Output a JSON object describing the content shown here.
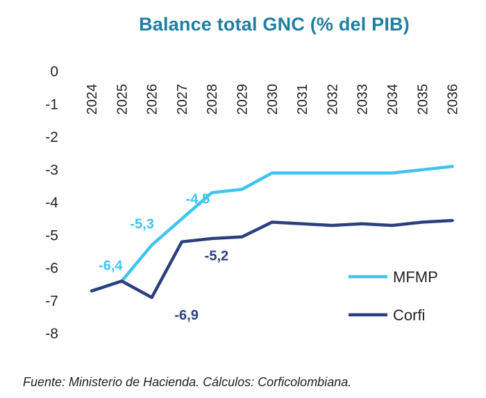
{
  "chart_data": {
    "type": "line",
    "title": "Balance total GNC (% del PIB)",
    "xlabel": "",
    "ylabel": "",
    "categories": [
      "2024",
      "2025",
      "2026",
      "2027",
      "2028",
      "2029",
      "2030",
      "2031",
      "2032",
      "2033",
      "2034",
      "2035",
      "2036"
    ],
    "ylim": [
      -8,
      0
    ],
    "yticks": [
      0,
      -1,
      -2,
      -3,
      -4,
      -5,
      -6,
      -7,
      -8
    ],
    "grid": false,
    "legend_position": "bottom-right",
    "series": [
      {
        "name": "MFMP",
        "color": "#3fc4f0",
        "values": [
          -6.7,
          -6.4,
          -5.3,
          -4.5,
          -3.7,
          -3.6,
          -3.1,
          -3.1,
          -3.1,
          -3.1,
          -3.1,
          -3.0,
          -2.9
        ],
        "labels": [
          {
            "index": 1,
            "text": "-6,4"
          },
          {
            "index": 2,
            "text": "-5,3"
          },
          {
            "index": 3,
            "text": "-4,5"
          }
        ]
      },
      {
        "name": "Corfi",
        "color": "#2b3f7d",
        "values": [
          -6.7,
          -6.4,
          -6.9,
          -5.2,
          -5.1,
          -5.05,
          -4.6,
          -4.65,
          -4.7,
          -4.65,
          -4.7,
          -4.6,
          -4.55
        ],
        "labels": [
          {
            "index": 2,
            "text": "-6,9"
          },
          {
            "index": 3,
            "text": "-5,2"
          }
        ]
      }
    ]
  },
  "source_note": "Fuente: Ministerio de Hacienda. Cálculos: Corficolombiana."
}
